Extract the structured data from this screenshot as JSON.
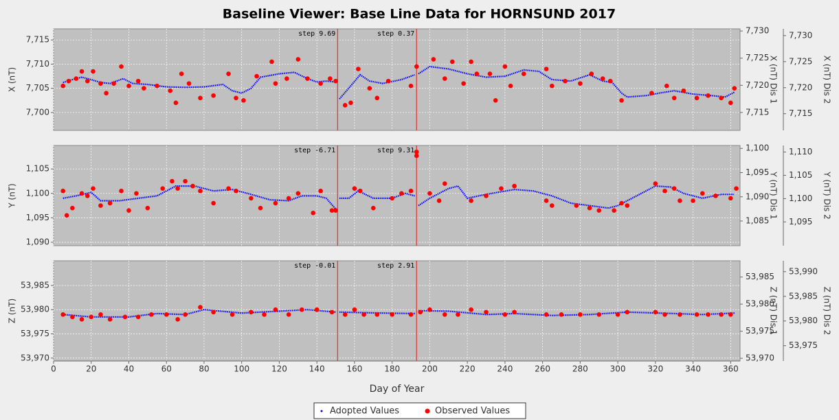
{
  "chart_data": [
    {
      "type": "line",
      "title": "Baseline Viewer: Base Line Data for HORNSUND 2017",
      "ylabel": "X (nT)",
      "y1label": "X (nT) Dis 1",
      "y2label": "X (nT) Dis 2",
      "xlim": [
        0,
        365
      ],
      "grid": true,
      "ylim": [
        7696.3,
        7717.3
      ],
      "yticks": [
        {
          "value": 7700,
          "label": "7,700"
        },
        {
          "value": 7705,
          "label": "7,705"
        },
        {
          "value": 7710,
          "label": "7,710"
        },
        {
          "value": 7715,
          "label": "7,715"
        }
      ],
      "y1lim": [
        7711.7,
        7730.4
      ],
      "y1ticks": [
        {
          "value": 7715,
          "label": "7,715"
        },
        {
          "value": 7720,
          "label": "7,720"
        },
        {
          "value": 7725,
          "label": "7,725"
        },
        {
          "value": 7730,
          "label": "7,730"
        }
      ],
      "y2lim": [
        7711.8,
        7731.3
      ],
      "y2ticks": [
        {
          "value": 7715,
          "label": "7,715"
        },
        {
          "value": 7720,
          "label": "7,720"
        },
        {
          "value": 7725,
          "label": "7,725"
        },
        {
          "value": 7730,
          "label": "7,730"
        }
      ],
      "steps": [
        {
          "x": 151,
          "label": "step 9.69"
        },
        {
          "x": 193,
          "label": "step 0.37"
        }
      ],
      "series": [
        {
          "name": "Adopted Values",
          "color": "#0000ff",
          "x": [
            5,
            10,
            15,
            20,
            25,
            30,
            37,
            42,
            50,
            60,
            70,
            80,
            90,
            95,
            100,
            105,
            110,
            120,
            128,
            135,
            140,
            145,
            150,
            151,
            152,
            158,
            163,
            168,
            175,
            185,
            192,
            193,
            194,
            200,
            210,
            220,
            230,
            240,
            250,
            258,
            265,
            275,
            285,
            292,
            297,
            302,
            305,
            315,
            322,
            330,
            340,
            350,
            357,
            362
          ],
          "values": [
            7706.2,
            7706.8,
            7707.3,
            7706.8,
            7706.2,
            7706.0,
            7707.0,
            7706.0,
            7705.8,
            7705.3,
            7705.2,
            7705.3,
            7705.8,
            7704.5,
            7704.0,
            7705.0,
            7707.3,
            7708.0,
            7708.3,
            7707.0,
            7706.3,
            7706.5,
            7706.3,
            null,
            7702.8,
            7705.5,
            7707.8,
            7706.5,
            7706.0,
            7706.8,
            7707.8,
            null,
            7708.0,
            7709.5,
            7709.0,
            7708.0,
            7707.3,
            7707.5,
            7708.8,
            7708.5,
            7706.8,
            7706.5,
            7707.8,
            7706.5,
            7706.2,
            7704.0,
            7703.2,
            7703.5,
            7704.0,
            7704.5,
            7703.8,
            7703.5,
            7703.2,
            7704.2
          ]
        },
        {
          "name": "Observed Values",
          "color": "#ff0000",
          "x": [
            5,
            8,
            12,
            15,
            18,
            21,
            25,
            28,
            32,
            36,
            40,
            45,
            48,
            55,
            62,
            65,
            68,
            72,
            78,
            85,
            93,
            97,
            101,
            108,
            116,
            118,
            124,
            130,
            135,
            142,
            147,
            150,
            155,
            158,
            162,
            168,
            172,
            178,
            190,
            193,
            202,
            208,
            212,
            218,
            222,
            225,
            232,
            235,
            240,
            243,
            250,
            262,
            265,
            272,
            280,
            286,
            292,
            296,
            302,
            318,
            326,
            330,
            335,
            342,
            348,
            355,
            360,
            362
          ],
          "values": [
            7705.5,
            7706.5,
            7707,
            7708.5,
            7706.5,
            7708.5,
            7706,
            7704,
            7706,
            7709.5,
            7705.5,
            7706.5,
            7705,
            7705.5,
            7704.5,
            7702,
            7708,
            7706,
            7703,
            7703.5,
            7708,
            7703,
            7702.5,
            7707.5,
            7710.5,
            7706,
            7707,
            7711,
            7707,
            7706,
            7707,
            7706.5,
            7701.5,
            7702,
            7709,
            7705,
            7703,
            7706.5,
            7705.5,
            7709.5,
            7711,
            7707,
            7710.5,
            7706,
            7710.5,
            7708,
            7708,
            7702.5,
            7709.5,
            7705.5,
            7708,
            7709,
            7705.5,
            7706.5,
            7706,
            7708,
            7707,
            7706.5,
            7702.5,
            7704,
            7705.5,
            7703,
            7704.5,
            7703,
            7703.5,
            7703,
            7702,
            7705
          ]
        }
      ]
    },
    {
      "type": "line",
      "ylabel": "Y (nT)",
      "y1label": "Y (nT) Dis 1",
      "y2label": "Y (nT) Dis 2",
      "xlim": [
        0,
        365
      ],
      "grid": true,
      "ylim": [
        1089.3,
        1109.8
      ],
      "yticks": [
        {
          "value": 1090,
          "label": "1,090"
        },
        {
          "value": 1095,
          "label": "1,095"
        },
        {
          "value": 1100,
          "label": "1,100"
        },
        {
          "value": 1105,
          "label": "1,105"
        }
      ],
      "y1lim": [
        1079.9,
        1100.6
      ],
      "y1ticks": [
        {
          "value": 1085,
          "label": "1,085"
        },
        {
          "value": 1090,
          "label": "1,090"
        },
        {
          "value": 1095,
          "label": "1,095"
        },
        {
          "value": 1100,
          "label": "1,100"
        }
      ],
      "y2lim": [
        1089.9,
        1111.4
      ],
      "y2ticks": [
        {
          "value": 1095,
          "label": "1,095"
        },
        {
          "value": 1100,
          "label": "1,100"
        },
        {
          "value": 1105,
          "label": "1,105"
        },
        {
          "value": 1110,
          "label": "1,110"
        }
      ],
      "steps": [
        {
          "x": 151,
          "label": "step -6.71"
        },
        {
          "x": 193,
          "label": "step 9.31"
        }
      ],
      "series": [
        {
          "name": "Adopted Values",
          "color": "#0000ff",
          "x": [
            5,
            12,
            20,
            25,
            35,
            45,
            55,
            65,
            75,
            85,
            95,
            105,
            115,
            125,
            132,
            140,
            145,
            150,
            151,
            152,
            157,
            162,
            170,
            180,
            187,
            192,
            193,
            194,
            200,
            210,
            215,
            220,
            230,
            245,
            255,
            265,
            275,
            285,
            295,
            300,
            310,
            320,
            328,
            335,
            345,
            355,
            362
          ],
          "values": [
            1099.0,
            1099.5,
            1100.2,
            1098.5,
            1098.5,
            1099.0,
            1099.5,
            1101.5,
            1101.5,
            1100.5,
            1100.8,
            1099.8,
            1098.7,
            1098.5,
            1099.5,
            1099.5,
            1099.0,
            1096.8,
            null,
            1099.0,
            1099.0,
            1100.5,
            1099.0,
            1099.0,
            1100.0,
            1099.5,
            null,
            1097.5,
            1099.0,
            1101.0,
            1101.5,
            1099.0,
            1099.8,
            1100.8,
            1100.5,
            1099.5,
            1098.0,
            1097.5,
            1097.0,
            1097.5,
            1099.5,
            1101.5,
            1101.3,
            1100.0,
            1099.0,
            1099.8,
            1099.8
          ]
        },
        {
          "name": "Observed Values",
          "color": "#ff0000",
          "x": [
            5,
            7,
            10,
            15,
            18,
            21,
            25,
            30,
            36,
            40,
            44,
            50,
            58,
            63,
            66,
            70,
            74,
            78,
            85,
            93,
            97,
            105,
            110,
            118,
            125,
            130,
            138,
            142,
            148,
            150,
            160,
            163,
            170,
            180,
            185,
            190,
            193,
            193,
            200,
            205,
            208,
            222,
            230,
            238,
            245,
            262,
            265,
            278,
            285,
            290,
            298,
            302,
            305,
            320,
            325,
            330,
            333,
            340,
            345,
            352,
            360,
            363
          ],
          "values": [
            1100.5,
            1095.5,
            1097,
            1100,
            1099.5,
            1101,
            1097.5,
            1098,
            1100.5,
            1096.5,
            1100,
            1097,
            1101,
            1102.5,
            1101,
            1102.5,
            1101.5,
            1100.5,
            1098,
            1101,
            1100.5,
            1099,
            1097,
            1098,
            1099,
            1100,
            1096,
            1100.5,
            1096.5,
            1096.5,
            1101,
            1100.5,
            1097,
            1099,
            1100,
            1100.5,
            1108.5,
            1107.7,
            1100,
            1098.5,
            1102,
            1098.5,
            1099.5,
            1101,
            1101.5,
            1098.5,
            1097.5,
            1097.5,
            1097,
            1096.5,
            1096.5,
            1098,
            1097.5,
            1102,
            1100.5,
            1101,
            1098.5,
            1098.5,
            1100,
            1099.5,
            1099,
            1101
          ]
        }
      ]
    },
    {
      "type": "line",
      "ylabel": "Z (nT)",
      "y1label": "Z (nT) Dis 1",
      "y2label": "Z (nT) Dis 2",
      "xlabel": "Day of Year",
      "xlim": [
        0,
        365
      ],
      "xticks": [
        0,
        20,
        40,
        60,
        80,
        100,
        120,
        140,
        160,
        180,
        200,
        220,
        240,
        260,
        280,
        300,
        320,
        340,
        360
      ],
      "grid": true,
      "ylim": [
        53969.4,
        53990.1
      ],
      "yticks": [
        {
          "value": 53970,
          "label": "53,970"
        },
        {
          "value": 53975,
          "label": "53,975"
        },
        {
          "value": 53980,
          "label": "53,980"
        },
        {
          "value": 53985,
          "label": "53,985"
        }
      ],
      "y1lim": [
        53969.5,
        53988.0
      ],
      "y1ticks": [
        {
          "value": 53970,
          "label": "53,970"
        },
        {
          "value": 53975,
          "label": "53,975"
        },
        {
          "value": 53980,
          "label": "53,980"
        },
        {
          "value": 53985,
          "label": "53,985"
        }
      ],
      "y2lim": [
        53971.9,
        53992.2
      ],
      "y2ticks": [
        {
          "value": 53975,
          "label": "53,975"
        },
        {
          "value": 53980,
          "label": "53,980"
        },
        {
          "value": 53985,
          "label": "53,985"
        },
        {
          "value": 53990,
          "label": "53,990"
        }
      ],
      "steps": [
        {
          "x": 151,
          "label": "step -0.01"
        },
        {
          "x": 193,
          "label": "step 2.91"
        }
      ],
      "series": [
        {
          "name": "Adopted Values",
          "color": "#0000ff",
          "x": [
            5,
            20,
            40,
            55,
            70,
            80,
            100,
            120,
            135,
            150,
            151,
            152,
            175,
            192,
            193,
            194,
            210,
            230,
            245,
            265,
            285,
            305,
            330,
            345,
            362
          ],
          "values": [
            53979.0,
            53978.5,
            53978.5,
            53979.2,
            53979.0,
            53980.0,
            53979.3,
            53979.7,
            53980.0,
            53979.5,
            null,
            53979.5,
            53979.3,
            53979.2,
            null,
            53979.8,
            53979.7,
            53979.0,
            53979.2,
            53978.8,
            53979.0,
            53979.5,
            53979.2,
            53979.0,
            53979.3
          ]
        },
        {
          "name": "Observed Values",
          "color": "#ff0000",
          "x": [
            5,
            10,
            15,
            20,
            25,
            30,
            38,
            45,
            52,
            60,
            66,
            70,
            78,
            85,
            95,
            105,
            112,
            118,
            125,
            132,
            140,
            148,
            155,
            160,
            165,
            172,
            180,
            190,
            195,
            200,
            208,
            215,
            222,
            230,
            240,
            245,
            262,
            270,
            280,
            290,
            300,
            305,
            320,
            325,
            333,
            342,
            348,
            355,
            360
          ],
          "values": [
            53979,
            53978.5,
            53978,
            53978.5,
            53979,
            53978,
            53978.5,
            53978.5,
            53979,
            53979,
            53978,
            53979,
            53980.5,
            53979.5,
            53979,
            53979.5,
            53979,
            53980,
            53979,
            53980,
            53980,
            53979.5,
            53979,
            53980,
            53979,
            53979,
            53979,
            53979,
            53979.5,
            53980,
            53979,
            53979,
            53980,
            53979.5,
            53979,
            53979.5,
            53979,
            53979,
            53979,
            53979,
            53979,
            53979.5,
            53979.5,
            53979,
            53979,
            53979,
            53979,
            53979,
            53979
          ]
        }
      ]
    }
  ]
}
